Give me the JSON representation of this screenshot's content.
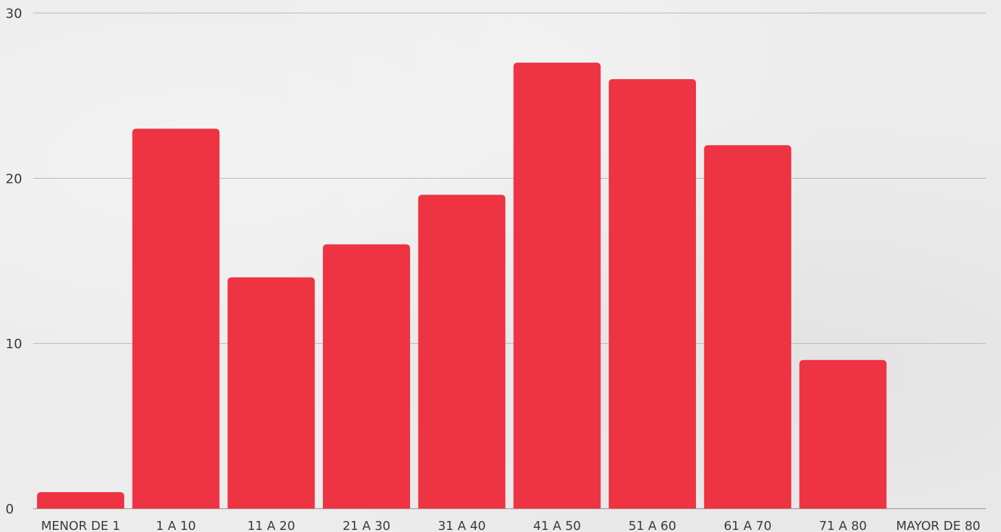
{
  "chart_data": {
    "type": "bar",
    "title": "",
    "xlabel": "",
    "ylabel": "",
    "categories": [
      "MENOR DE 1",
      "1 A 10",
      "11 A 20",
      "21 A 30",
      "31 A 40",
      "41 A 50",
      "51 A 60",
      "61 A 70",
      "71 A 80",
      "MAYOR DE 80"
    ],
    "values": [
      1,
      23,
      14,
      16,
      19,
      27,
      26,
      22,
      9,
      0
    ],
    "ylim": [
      0,
      30
    ],
    "yticks": [
      0,
      10,
      20,
      30
    ],
    "grid": true,
    "legend": "none",
    "colors": {
      "bar": "#ee3342",
      "grid": "#b4b4b4",
      "text": "#3a3a3a"
    }
  }
}
